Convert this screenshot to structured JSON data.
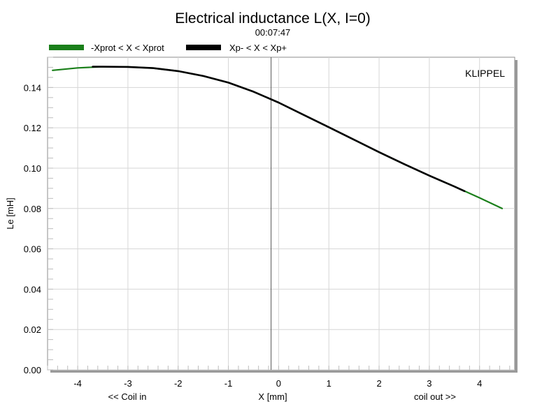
{
  "chart_data": {
    "type": "line",
    "title": "Electrical inductance L(X, I=0)",
    "subtitle": "00:07:47",
    "watermark": "KLIPPEL",
    "xlabel": "X [mm]",
    "xlabel_left": "<< Coil in",
    "xlabel_right": "coil out >>",
    "ylabel": "Le [mH]",
    "xlim": [
      -4.6,
      4.7
    ],
    "ylim": [
      0.0,
      0.155
    ],
    "x_ticks": [
      -4,
      -3,
      -2,
      -1,
      0,
      1,
      2,
      3,
      4
    ],
    "x_tick_labels": [
      "-4",
      "-3",
      "-2",
      "-1",
      "0",
      "1",
      "2",
      "3",
      "4"
    ],
    "y_ticks": [
      0.0,
      0.02,
      0.04,
      0.06,
      0.08,
      0.1,
      0.12,
      0.14
    ],
    "y_tick_labels": [
      "0.00",
      "0.02",
      "0.04",
      "0.06",
      "0.08",
      "0.10",
      "0.12",
      "0.14"
    ],
    "grid": true,
    "legend_position": "top-left",
    "vertical_marker_x": -0.15,
    "series": [
      {
        "name": "-Xprot < X < Xprot",
        "color": "#1a7f1a",
        "x": [
          -4.5,
          -4.0,
          -3.5,
          -3.0,
          -2.5,
          -2.0,
          -1.5,
          -1.0,
          -0.5,
          0.0,
          0.5,
          1.0,
          1.5,
          2.0,
          2.5,
          3.0,
          3.5,
          4.0,
          4.45
        ],
        "y": [
          0.1485,
          0.1497,
          0.1503,
          0.1502,
          0.1496,
          0.1481,
          0.1457,
          0.1424,
          0.1379,
          0.1325,
          0.1264,
          0.1203,
          0.1141,
          0.1079,
          0.102,
          0.0963,
          0.0909,
          0.0853,
          0.08
        ]
      },
      {
        "name": "Xp- < X < Xp+",
        "color": "#000000",
        "x": [
          -3.7,
          -3.5,
          -3.0,
          -2.5,
          -2.0,
          -1.5,
          -1.0,
          -0.5,
          0.0,
          0.5,
          1.0,
          1.5,
          2.0,
          2.5,
          3.0,
          3.5,
          3.7
        ],
        "y": [
          0.1503,
          0.1503,
          0.1502,
          0.1496,
          0.1481,
          0.1457,
          0.1424,
          0.1379,
          0.1325,
          0.1264,
          0.1203,
          0.1141,
          0.1079,
          0.102,
          0.0963,
          0.0909,
          0.0886
        ]
      }
    ]
  }
}
